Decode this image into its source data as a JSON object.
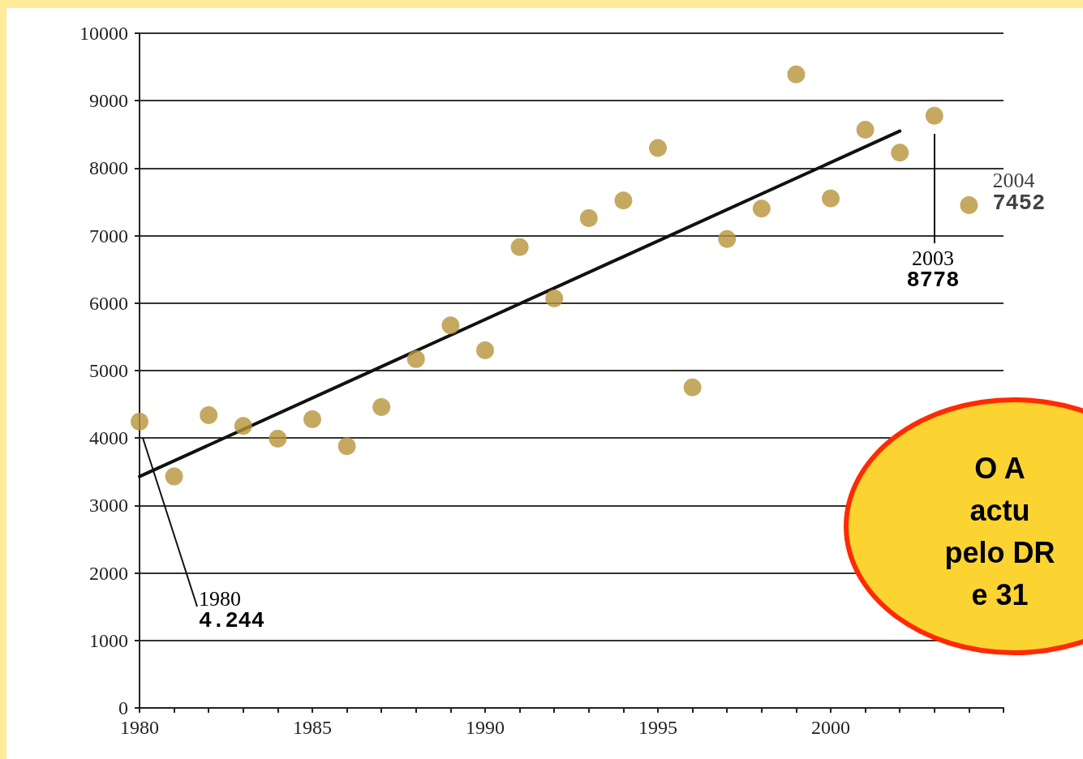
{
  "chart_data": {
    "type": "scatter",
    "x": [
      1980,
      1981,
      1982,
      1983,
      1984,
      1985,
      1986,
      1987,
      1988,
      1989,
      1990,
      1991,
      1992,
      1993,
      1994,
      1995,
      1996,
      1997,
      1998,
      1999,
      2000,
      2001,
      2002,
      2003,
      2004
    ],
    "series": [
      {
        "type": "scatter",
        "color": "#b8943a",
        "marker": "circle",
        "values": [
          4244,
          3430,
          4340,
          4180,
          3990,
          4280,
          3880,
          4460,
          5170,
          5670,
          5300,
          6830,
          6070,
          7260,
          7520,
          8300,
          4750,
          6950,
          7400,
          9390,
          7550,
          8570,
          8230,
          8778,
          7452
        ]
      },
      {
        "type": "line",
        "color": "#111111",
        "marker": "none",
        "line_style": "solid",
        "x": [
          1980,
          2002
        ],
        "values": [
          3430,
          8550
        ]
      }
    ],
    "xlim": [
      1980,
      2005
    ],
    "xticks": [
      1980,
      {
        "value": 1981,
        "label": null
      },
      {
        "value": 1982,
        "label": null
      },
      {
        "value": 1983,
        "label": null
      },
      {
        "value": 1984,
        "label": null
      },
      1985,
      {
        "value": 1986,
        "label": null
      },
      {
        "value": 1987,
        "label": null
      },
      {
        "value": 1988,
        "label": null
      },
      {
        "value": 1989,
        "label": null
      },
      1990,
      {
        "value": 1991,
        "label": null
      },
      {
        "value": 1992,
        "label": null
      },
      {
        "value": 1993,
        "label": null
      },
      {
        "value": 1994,
        "label": null
      },
      1995,
      {
        "value": 1996,
        "label": null
      },
      {
        "value": 1997,
        "label": null
      },
      {
        "value": 1998,
        "label": null
      },
      {
        "value": 1999,
        "label": null
      },
      2000,
      {
        "value": 2001,
        "label": null
      },
      {
        "value": 2002,
        "label": null
      },
      {
        "value": 2003,
        "label": null
      },
      {
        "value": 2004,
        "label": null
      },
      {
        "value": 2005,
        "label": null
      }
    ],
    "ylim": [
      0,
      10000
    ],
    "yticks": [
      0,
      1000,
      2000,
      3000,
      4000,
      5000,
      6000,
      7000,
      8000,
      9000,
      10000
    ],
    "grid": "y",
    "annotations": [
      "1980\n4.244",
      "2003\n8778",
      {
        "text": "2004\n7452",
        "x": 2004,
        "y": 7452
      },
      "O A\nactu\npelo DR\ne 31"
    ]
  }
}
